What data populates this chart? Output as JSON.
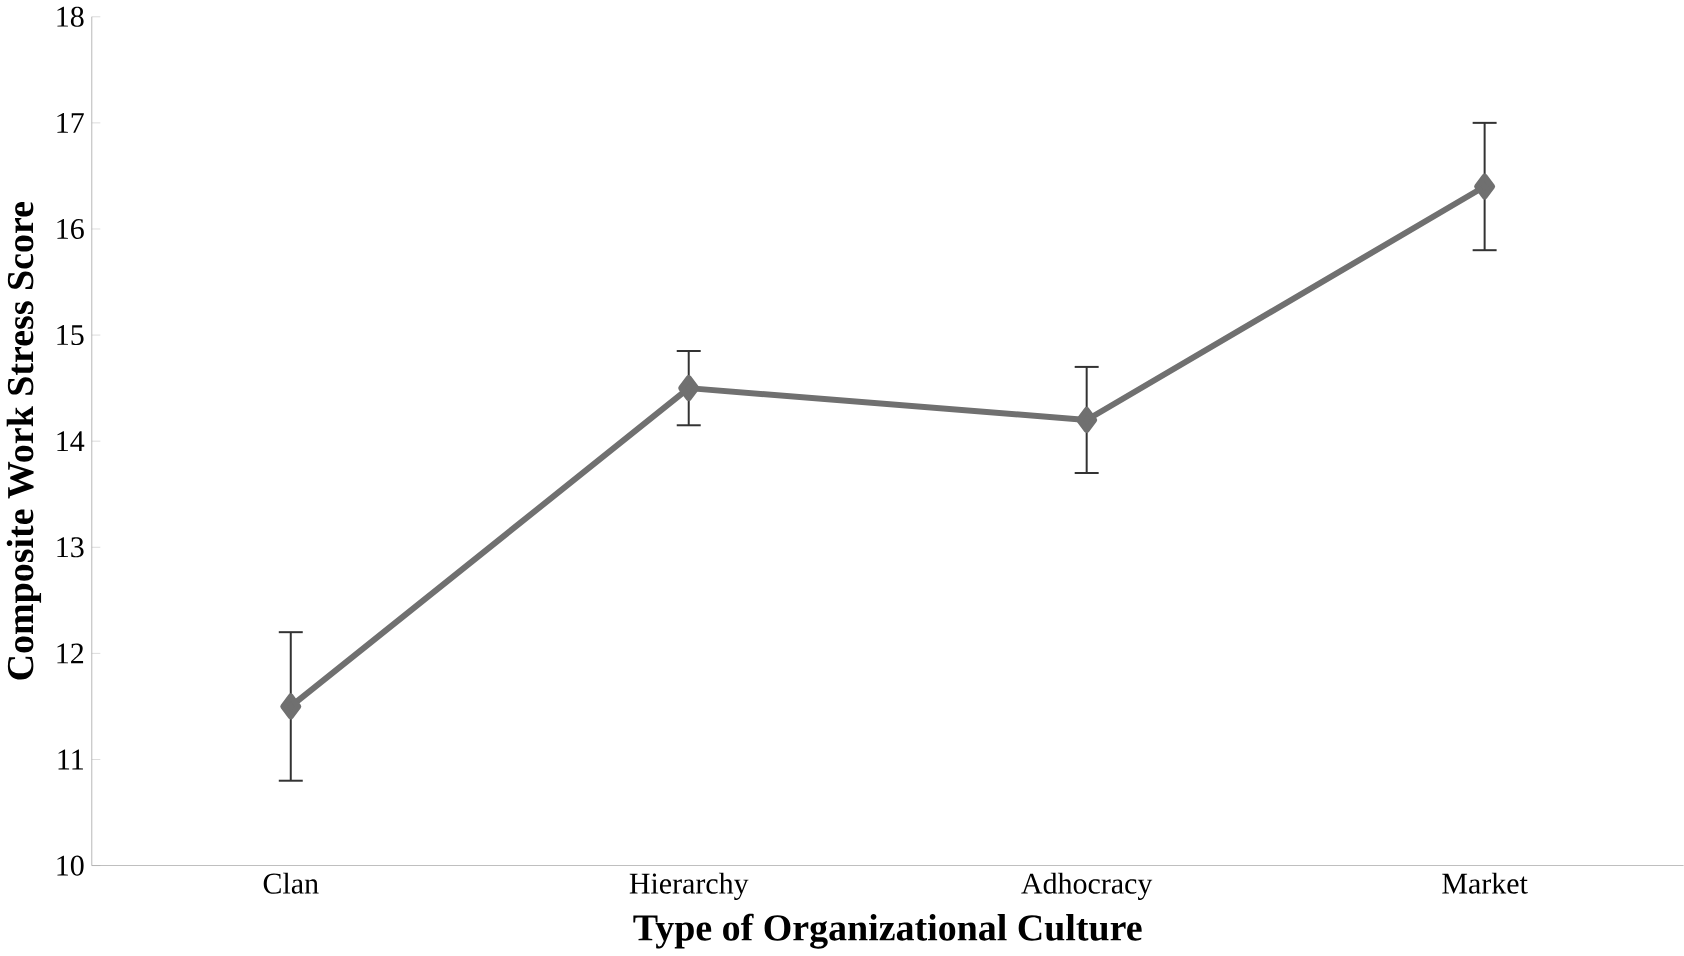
{
  "chart_data": {
    "type": "line",
    "xlabel": "Type of Organizational Culture",
    "ylabel": "Composite Work Stress Score",
    "categories": [
      "Clan",
      "Hierarchy",
      "Adhocracy",
      "Market"
    ],
    "values": [
      11.5,
      14.5,
      14.2,
      16.4
    ],
    "errors": [
      0.7,
      0.35,
      0.5,
      0.6
    ],
    "color": "#707070",
    "marker": "diamond",
    "line_style": "solid",
    "ylim": [
      10,
      18
    ],
    "yticks": [
      10,
      11,
      12,
      13,
      14,
      15,
      16,
      17,
      18
    ]
  }
}
